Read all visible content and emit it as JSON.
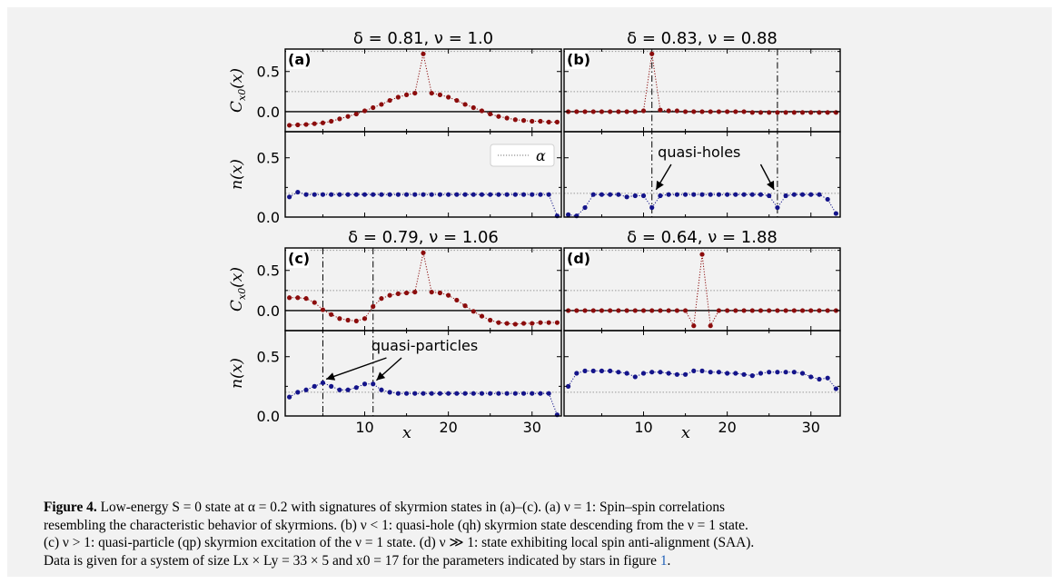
{
  "chart_data": [
    {
      "panel": "a",
      "title": "δ = 0.81, ν = 1.0",
      "type": "line",
      "x": [
        1,
        2,
        3,
        4,
        5,
        6,
        7,
        8,
        9,
        10,
        11,
        12,
        13,
        14,
        15,
        16,
        17,
        18,
        19,
        20,
        21,
        22,
        23,
        24,
        25,
        26,
        27,
        28,
        29,
        30,
        31,
        32,
        33
      ],
      "correlation": [
        -0.17,
        -0.165,
        -0.16,
        -0.15,
        -0.14,
        -0.12,
        -0.09,
        -0.06,
        -0.03,
        0.01,
        0.05,
        0.09,
        0.14,
        0.18,
        0.21,
        0.23,
        0.72,
        0.23,
        0.21,
        0.18,
        0.14,
        0.09,
        0.05,
        0.01,
        -0.03,
        -0.06,
        -0.08,
        -0.1,
        -0.11,
        -0.12,
        -0.12,
        -0.13,
        -0.13
      ],
      "density": [
        0.17,
        0.21,
        0.19,
        0.19,
        0.19,
        0.19,
        0.19,
        0.19,
        0.19,
        0.19,
        0.19,
        0.19,
        0.19,
        0.19,
        0.19,
        0.19,
        0.19,
        0.19,
        0.19,
        0.19,
        0.19,
        0.19,
        0.19,
        0.19,
        0.19,
        0.19,
        0.19,
        0.19,
        0.19,
        0.19,
        0.19,
        0.19,
        0.01
      ],
      "vlines": [],
      "legend": "α"
    },
    {
      "panel": "b",
      "title": "δ = 0.83, ν = 0.88",
      "type": "line",
      "x": [
        1,
        2,
        3,
        4,
        5,
        6,
        7,
        8,
        9,
        10,
        11,
        12,
        13,
        14,
        15,
        16,
        17,
        18,
        19,
        20,
        21,
        22,
        23,
        24,
        25,
        26,
        27,
        28,
        29,
        30,
        31,
        32,
        33
      ],
      "correlation": [
        0.0,
        0.0,
        0.0,
        0.0,
        0.0,
        0.0,
        0.0,
        0.0,
        0.0,
        0.01,
        0.72,
        0.02,
        0.01,
        0.01,
        0.0,
        0.0,
        0.0,
        0.0,
        0.0,
        0.0,
        0.0,
        0.0,
        -0.01,
        -0.01,
        -0.01,
        -0.01,
        -0.01,
        -0.01,
        -0.01,
        -0.01,
        -0.01,
        -0.01,
        -0.01
      ],
      "density": [
        0.02,
        0.01,
        0.08,
        0.19,
        0.19,
        0.19,
        0.19,
        0.17,
        0.18,
        0.18,
        0.08,
        0.18,
        0.19,
        0.19,
        0.19,
        0.19,
        0.19,
        0.19,
        0.19,
        0.19,
        0.19,
        0.19,
        0.19,
        0.19,
        0.18,
        0.08,
        0.18,
        0.19,
        0.19,
        0.19,
        0.19,
        0.15,
        0.03
      ],
      "vlines": [
        11,
        26
      ],
      "annotation": "quasi-holes"
    },
    {
      "panel": "c",
      "title": "δ = 0.79, ν = 1.06",
      "type": "line",
      "x": [
        1,
        2,
        3,
        4,
        5,
        6,
        7,
        8,
        9,
        10,
        11,
        12,
        13,
        14,
        15,
        16,
        17,
        18,
        19,
        20,
        21,
        22,
        23,
        24,
        25,
        26,
        27,
        28,
        29,
        30,
        31,
        32,
        33
      ],
      "correlation": [
        0.16,
        0.16,
        0.15,
        0.1,
        0.01,
        -0.05,
        -0.1,
        -0.12,
        -0.13,
        -0.1,
        0.05,
        0.15,
        0.19,
        0.21,
        0.22,
        0.23,
        0.72,
        0.23,
        0.22,
        0.19,
        0.13,
        0.06,
        -0.01,
        -0.07,
        -0.12,
        -0.15,
        -0.16,
        -0.17,
        -0.16,
        -0.16,
        -0.15,
        -0.15,
        -0.15
      ],
      "density": [
        0.16,
        0.2,
        0.22,
        0.25,
        0.28,
        0.25,
        0.22,
        0.22,
        0.24,
        0.27,
        0.27,
        0.22,
        0.2,
        0.19,
        0.19,
        0.19,
        0.19,
        0.19,
        0.19,
        0.19,
        0.19,
        0.19,
        0.19,
        0.19,
        0.19,
        0.19,
        0.19,
        0.19,
        0.19,
        0.19,
        0.19,
        0.19,
        0.01
      ],
      "vlines": [
        5,
        11
      ],
      "annotation": "quasi-particles"
    },
    {
      "panel": "d",
      "title": "δ = 0.64, ν = 1.88",
      "type": "line",
      "x": [
        1,
        2,
        3,
        4,
        5,
        6,
        7,
        8,
        9,
        10,
        11,
        12,
        13,
        14,
        15,
        16,
        17,
        18,
        19,
        20,
        21,
        22,
        23,
        24,
        25,
        26,
        27,
        28,
        29,
        30,
        31,
        32,
        33
      ],
      "correlation": [
        0.0,
        0.0,
        0.0,
        0.0,
        0.0,
        0.0,
        0.0,
        0.0,
        0.0,
        0.0,
        0.0,
        0.0,
        0.0,
        0.0,
        0.0,
        -0.19,
        0.7,
        -0.19,
        0.0,
        0.0,
        0.0,
        0.0,
        0.0,
        0.0,
        0.0,
        0.0,
        0.0,
        0.0,
        0.0,
        0.0,
        0.0,
        0.0,
        0.0
      ],
      "density": [
        0.25,
        0.36,
        0.38,
        0.38,
        0.38,
        0.38,
        0.37,
        0.36,
        0.33,
        0.36,
        0.37,
        0.37,
        0.36,
        0.35,
        0.35,
        0.38,
        0.38,
        0.37,
        0.37,
        0.36,
        0.36,
        0.35,
        0.34,
        0.36,
        0.37,
        0.37,
        0.37,
        0.37,
        0.36,
        0.33,
        0.31,
        0.32,
        0.23
      ],
      "vlines": []
    }
  ],
  "axes": {
    "corr_ylabel": "C_{x0}(x)",
    "corr_yticks": [
      "0.5",
      "0.0"
    ],
    "dens_ylabel": "n(x)",
    "dens_yticks": [
      "0.5",
      "0.0"
    ],
    "xlabel": "x",
    "xticks": [
      "10",
      "20",
      "30"
    ],
    "corr_ylim": [
      -0.25,
      0.78
    ],
    "dens_ylim": [
      0.0,
      0.72
    ],
    "xlim": [
      0.5,
      33.5
    ],
    "corr_ref_lines": [
      0.75,
      0.25,
      -0.25
    ],
    "dens_ref_lines": [
      0.2
    ],
    "colors": {
      "correlation": "#8b0c0c",
      "density": "#14148a"
    }
  },
  "caption": {
    "label": "Figure 4.",
    "line1": " Low-energy S = 0 state at α = 0.2 with signatures of skyrmion states in (a)–(c). (a) ν = 1: Spin–spin correlations",
    "line2": "resembling the characteristic behavior of skyrmions. (b) ν < 1: quasi-hole (qh) skyrmion state descending from the ν = 1 state.",
    "line3": "(c) ν > 1: quasi-particle (qp) skyrmion excitation of the ν = 1 state. (d) ν ≫ 1: state exhibiting local spin anti-alignment (SAA).",
    "line4": "Data is given for a system of size Lx × Ly = 33 × 5 and x0 = 17 for the parameters indicated by stars in figure ",
    "ref": "1",
    "end": "."
  }
}
